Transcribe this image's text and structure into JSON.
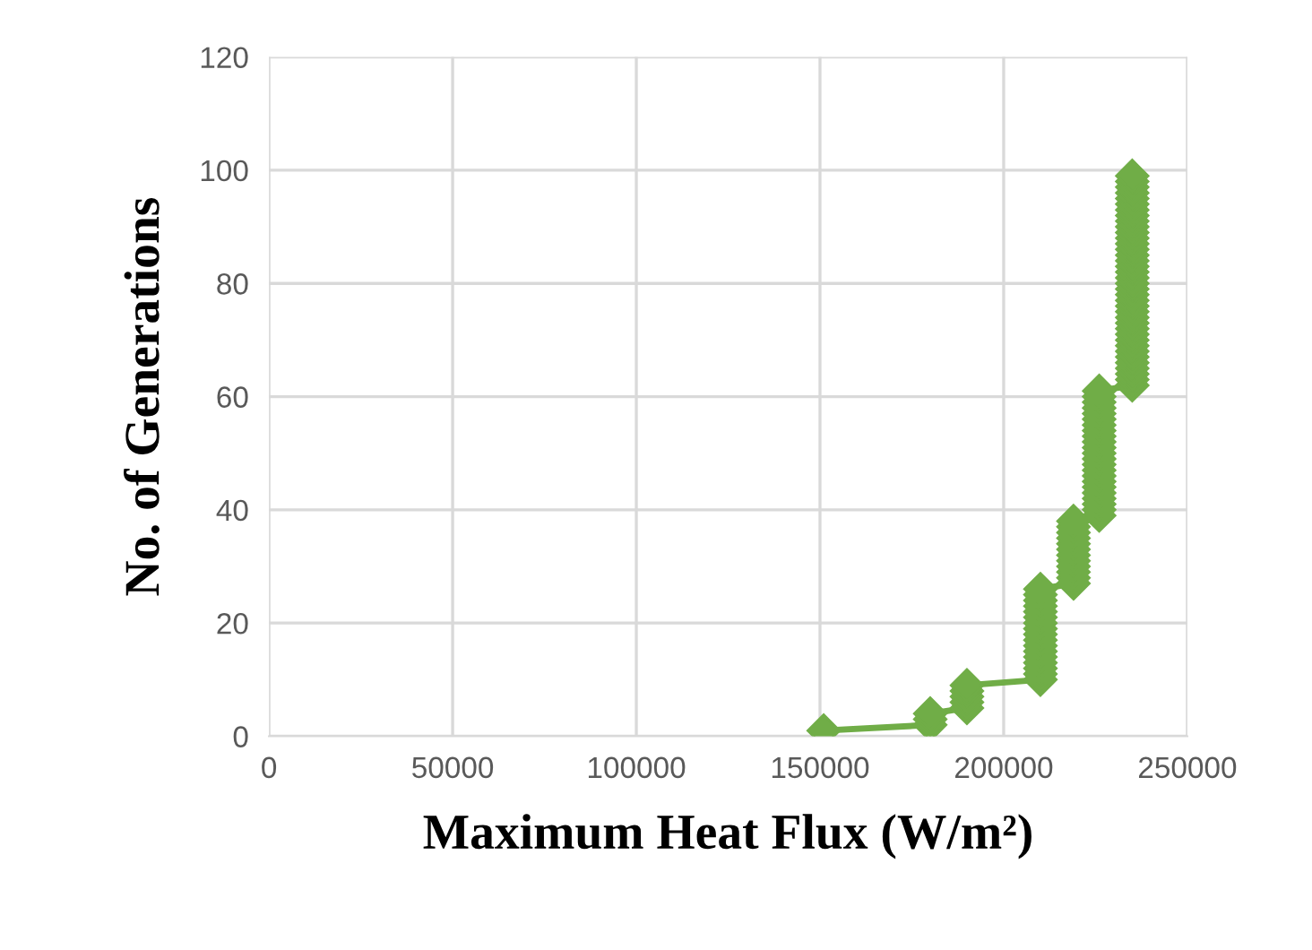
{
  "chart_data": {
    "type": "line",
    "xlabel": "Maximum Heat Flux (W/m²)",
    "ylabel": "No. of Generations",
    "xlim": [
      0,
      250000
    ],
    "xticks": [
      0,
      50000,
      100000,
      150000,
      200000,
      250000
    ],
    "ylim": [
      0,
      120
    ],
    "yticks": [
      0,
      20,
      40,
      60,
      80,
      100,
      120
    ],
    "grid": true,
    "marker": "diamond",
    "line_style": "solid",
    "series": [
      {
        "color": "#70ad47",
        "x": [
          151000,
          180000,
          180000,
          180000,
          190000,
          190000,
          190000,
          190000,
          190000,
          210000,
          210000,
          210000,
          210000,
          210000,
          210000,
          210000,
          210000,
          210000,
          210000,
          210000,
          210000,
          210000,
          210000,
          210000,
          210000,
          210000,
          219000,
          219000,
          219000,
          219000,
          219000,
          219000,
          219000,
          219000,
          219000,
          219000,
          219000,
          219000,
          226000,
          226000,
          226000,
          226000,
          226000,
          226000,
          226000,
          226000,
          226000,
          226000,
          226000,
          226000,
          226000,
          226000,
          226000,
          226000,
          226000,
          226000,
          226000,
          226000,
          226000,
          226000,
          226000,
          235000,
          235000,
          235000,
          235000,
          235000,
          235000,
          235000,
          235000,
          235000,
          235000,
          235000,
          235000,
          235000,
          235000,
          235000,
          235000,
          235000,
          235000,
          235000,
          235000,
          235000,
          235000,
          235000,
          235000,
          235000,
          235000,
          235000,
          235000,
          235000,
          235000,
          235000,
          235000,
          235000,
          235000,
          235000,
          235000,
          235000,
          235000
        ],
        "values": [
          1,
          2,
          3,
          4,
          5,
          6,
          7,
          8,
          9,
          10,
          11,
          12,
          13,
          14,
          15,
          16,
          17,
          18,
          19,
          20,
          21,
          22,
          23,
          24,
          25,
          26,
          27,
          28,
          29,
          30,
          31,
          32,
          33,
          34,
          35,
          36,
          37,
          38,
          39,
          40,
          41,
          42,
          43,
          44,
          45,
          46,
          47,
          48,
          49,
          50,
          51,
          52,
          53,
          54,
          55,
          56,
          57,
          58,
          59,
          60,
          61,
          62,
          63,
          64,
          65,
          66,
          67,
          68,
          69,
          70,
          71,
          72,
          73,
          74,
          75,
          76,
          77,
          78,
          79,
          80,
          81,
          82,
          83,
          84,
          85,
          86,
          87,
          88,
          89,
          90,
          91,
          92,
          93,
          94,
          95,
          96,
          97,
          98,
          99
        ]
      }
    ]
  }
}
